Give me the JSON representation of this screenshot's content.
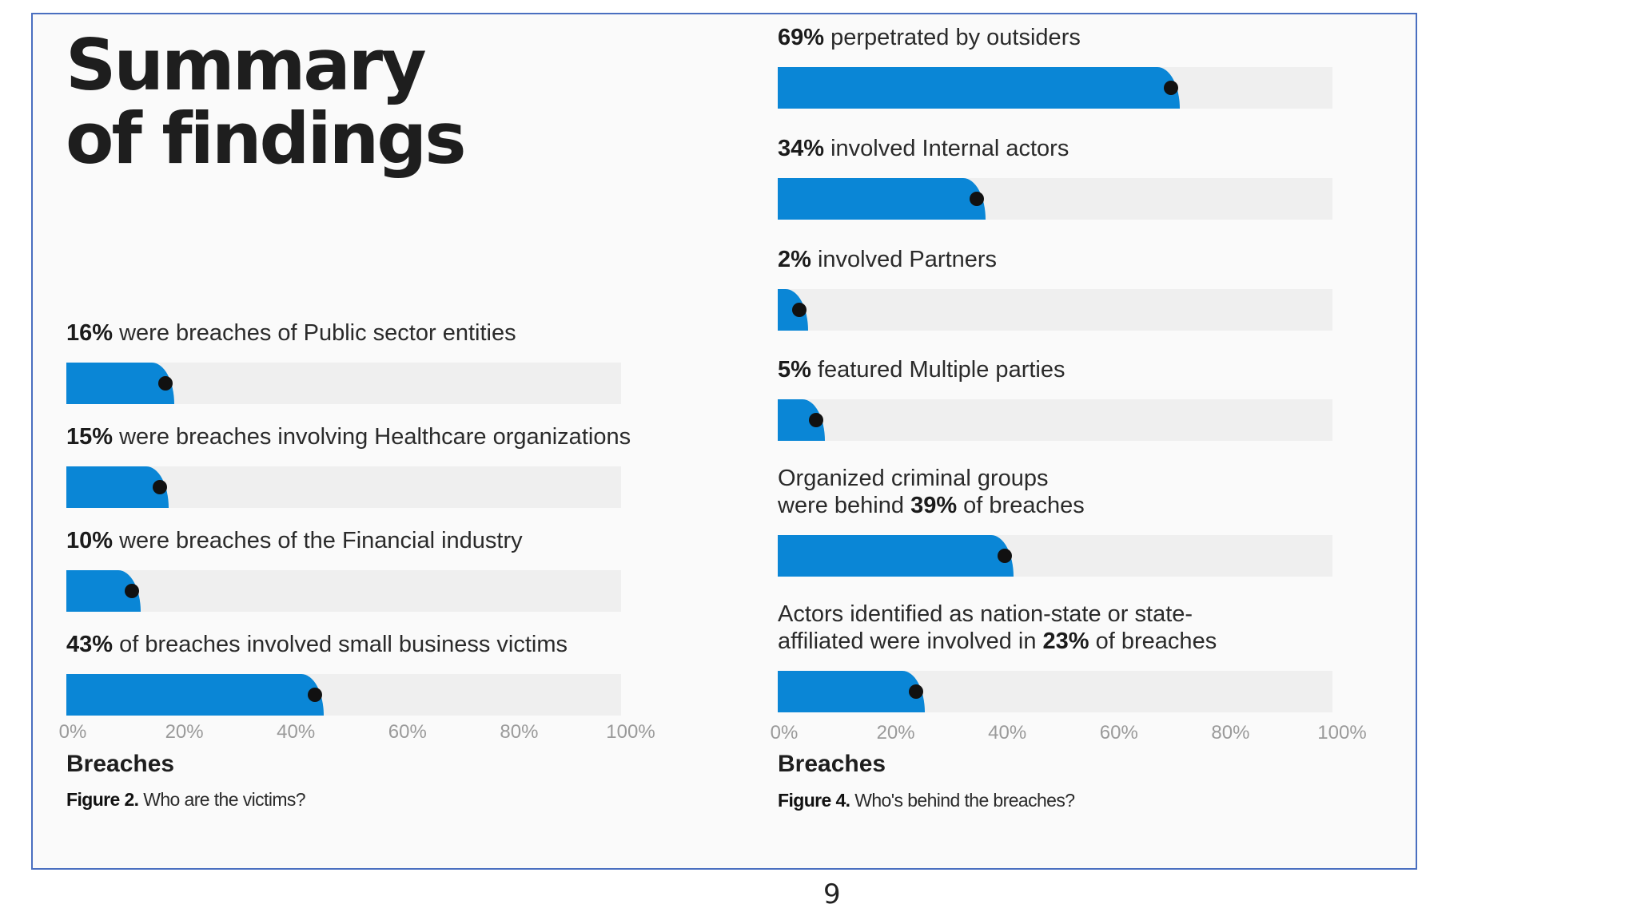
{
  "slide": {
    "title_line1": "Summary",
    "title_line2": "of findings",
    "page_number": "9"
  },
  "chart_data": [
    {
      "type": "bar",
      "orientation": "horizontal",
      "xlabel": "Breaches",
      "xlim": [
        0,
        100
      ],
      "ticks": [
        "0%",
        "20%",
        "40%",
        "60%",
        "80%",
        "100%"
      ],
      "caption_bold": "Figure 2.",
      "caption_text": "Who are the victims?",
      "bars": [
        {
          "label_pre": "",
          "label_bold": "16%",
          "label_post": " were breaches of Public sector entities",
          "value": 16
        },
        {
          "label_pre": "",
          "label_bold": "15%",
          "label_post": " were breaches involving Healthcare organizations",
          "value": 15
        },
        {
          "label_pre": "",
          "label_bold": "10%",
          "label_post": " were breaches of the Financial industry",
          "value": 10
        },
        {
          "label_pre": "",
          "label_bold": "43%",
          "label_post": " of breaches involved small business victims",
          "value": 43
        }
      ]
    },
    {
      "type": "bar",
      "orientation": "horizontal",
      "xlabel": "Breaches",
      "xlim": [
        0,
        100
      ],
      "ticks": [
        "0%",
        "20%",
        "40%",
        "60%",
        "80%",
        "100%"
      ],
      "caption_bold": "Figure 4.",
      "caption_text": "Who's behind the breaches?",
      "bars": [
        {
          "label_pre": "",
          "label_bold": "69%",
          "label_post": " perpetrated by outsiders",
          "value": 69
        },
        {
          "label_pre": "",
          "label_bold": "34%",
          "label_post": " involved Internal actors",
          "value": 34
        },
        {
          "label_pre": "",
          "label_bold": "2%",
          "label_post": " involved Partners",
          "value": 2
        },
        {
          "label_pre": "",
          "label_bold": "5%",
          "label_post": " featured Multiple parties",
          "value": 5
        },
        {
          "label_pre": "Organized criminal groups\nwere behind ",
          "label_bold": "39%",
          "label_post": " of breaches",
          "value": 39
        },
        {
          "label_pre": "Actors identified as nation-state or state-\naffiliated were involved in ",
          "label_bold": "23%",
          "label_post": " of breaches",
          "value": 23
        }
      ]
    }
  ]
}
